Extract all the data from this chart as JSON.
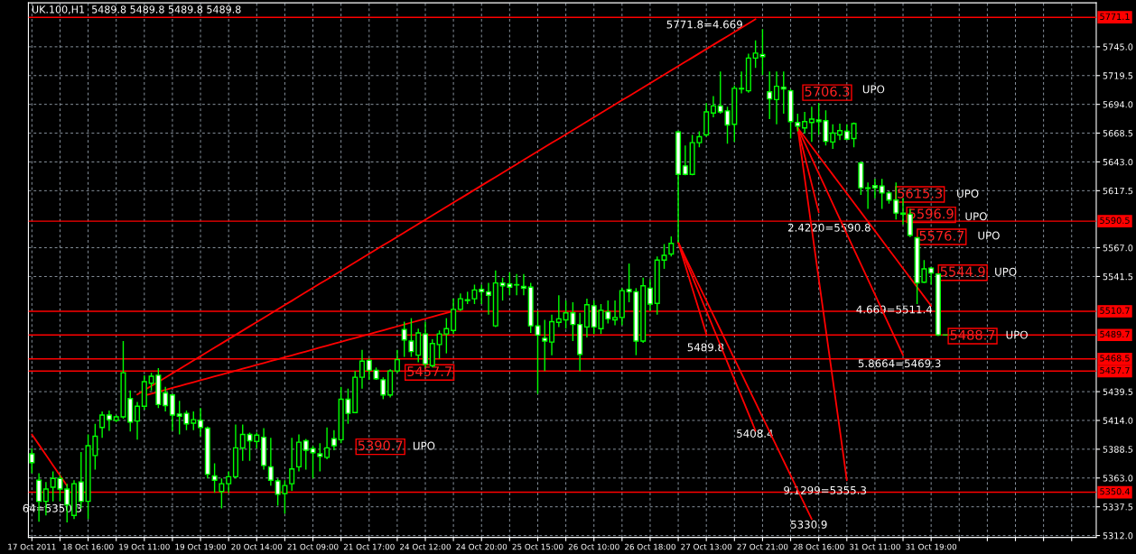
{
  "chart_data": {
    "type": "candlestick",
    "title": "UK.100,H1  5489.8 5489.8 5489.8 5489.8",
    "categories": [
      "17 Oct 2011",
      null,
      null,
      null,
      null,
      null,
      null,
      null,
      "18 Oct 16:00",
      null,
      null,
      null,
      null,
      null,
      null,
      null,
      "19 Oct 11:00",
      null,
      null,
      null,
      null,
      null,
      null,
      null,
      "19 Oct 19:00",
      null,
      null,
      null,
      null,
      null,
      null,
      null,
      "20 Oct 14:00",
      null,
      null,
      null,
      null,
      null,
      null,
      null,
      "21 Oct 09:00",
      null,
      null,
      null,
      null,
      null,
      null,
      null,
      "21 Oct 17:00",
      null,
      null,
      null,
      null,
      null,
      null,
      null,
      "24 Oct 12:00",
      null,
      null,
      null,
      null,
      null,
      null,
      null,
      "24 Oct 20:00",
      null,
      null,
      null,
      null,
      null,
      null,
      null,
      "25 Oct 15:00",
      null,
      null,
      null,
      null,
      null,
      null,
      null,
      "26 Oct 10:00",
      null,
      null,
      null,
      null,
      null,
      null,
      null,
      "26 Oct 18:00",
      null,
      null,
      null,
      null,
      null,
      null,
      null,
      "27 Oct 13:00",
      null,
      null,
      null,
      null,
      null,
      null,
      null,
      "27 Oct 21:00",
      null,
      null,
      null,
      null,
      null,
      null,
      null,
      "28 Oct 16:00",
      null,
      null,
      null,
      null,
      null,
      null,
      null,
      "31 Oct 11:00",
      null,
      null,
      null,
      null,
      null,
      null,
      null,
      "31 Oct 19:00",
      null,
      null
    ],
    "ohlc": [
      [
        5384.4,
        5389.1,
        5367.3,
        5376.6
      ],
      [
        5361.0,
        5367.3,
        5324.2,
        5342.3
      ],
      [
        5342.3,
        5359.5,
        5329.8,
        5353.2
      ],
      [
        5354.8,
        5368.8,
        5342.3,
        5362.6
      ],
      [
        5362.6,
        5365.7,
        5342.3,
        5353.2
      ],
      [
        5353.2,
        5357.9,
        5323.6,
        5339.2
      ],
      [
        5329.8,
        5361.0,
        5326.7,
        5357.9
      ],
      [
        5359.5,
        5386.0,
        5336.0,
        5342.3
      ],
      [
        5342.3,
        5401.6,
        5326.7,
        5391.6
      ],
      [
        5382.9,
        5411.0,
        5370.4,
        5400.0
      ],
      [
        5407.8,
        5421.9,
        5398.5,
        5418.8
      ],
      [
        5418.8,
        5422.8,
        5404.7,
        5414.7
      ],
      [
        5414.1,
        5418.8,
        5412.5,
        5417.2
      ],
      [
        5417.2,
        5484.3,
        5415.6,
        5456.2
      ],
      [
        5433.4,
        5440.6,
        5404.1,
        5412.5
      ],
      [
        5413.5,
        5430.3,
        5396.9,
        5426.6
      ],
      [
        5426.6,
        5454.0,
        5423.5,
        5448.4
      ],
      [
        5446.9,
        5456.2,
        5440.6,
        5453.1
      ],
      [
        5454.0,
        5460.3,
        5425.0,
        5428.1
      ],
      [
        5438.4,
        5443.7,
        5421.9,
        5427.2
      ],
      [
        5436.6,
        5437.5,
        5404.7,
        5418.8
      ],
      [
        5419.7,
        5431.3,
        5401.6,
        5417.8
      ],
      [
        5420.3,
        5422.8,
        5405.3,
        5411.0
      ],
      [
        5411.6,
        5421.9,
        5405.3,
        5414.7
      ],
      [
        5414.1,
        5425.0,
        5400.0,
        5407.8
      ],
      [
        5407.2,
        5408.5,
        5362.6,
        5366.3
      ],
      [
        5364.8,
        5376.0,
        5350.1,
        5361.0
      ],
      [
        5351.0,
        5362.6,
        5336.0,
        5357.9
      ],
      [
        5357.9,
        5368.8,
        5350.1,
        5364.1
      ],
      [
        5364.1,
        5410.3,
        5362.6,
        5389.7
      ],
      [
        5389.7,
        5410.3,
        5378.2,
        5401.6
      ],
      [
        5401.6,
        5403.2,
        5378.2,
        5396.0
      ],
      [
        5395.4,
        5403.2,
        5389.1,
        5401.0
      ],
      [
        5399.1,
        5407.2,
        5370.4,
        5374.1
      ],
      [
        5372.9,
        5398.5,
        5356.3,
        5361.0
      ],
      [
        5360.4,
        5362.6,
        5338.5,
        5348.5
      ],
      [
        5349.2,
        5361.0,
        5331.4,
        5356.3
      ],
      [
        5357.9,
        5398.5,
        5351.6,
        5371.0
      ],
      [
        5372.9,
        5401.6,
        5368.8,
        5394.7
      ],
      [
        5396.0,
        5397.5,
        5370.4,
        5387.6
      ],
      [
        5389.1,
        5391.6,
        5362.6,
        5385.4
      ],
      [
        5384.4,
        5393.8,
        5368.8,
        5382.2
      ],
      [
        5381.3,
        5407.8,
        5379.7,
        5389.7
      ],
      [
        5397.9,
        5405.3,
        5387.6,
        5391.6
      ],
      [
        5396.9,
        5443.7,
        5393.8,
        5432.8
      ],
      [
        5432.8,
        5442.2,
        5411.0,
        5420.3
      ],
      [
        5421.0,
        5457.8,
        5420.3,
        5452.2
      ],
      [
        5452.2,
        5476.5,
        5442.2,
        5466.5
      ],
      [
        5467.2,
        5468.7,
        5450.0,
        5458.4
      ],
      [
        5458.4,
        5460.9,
        5450.0,
        5450.9
      ],
      [
        5450.0,
        5452.2,
        5432.8,
        5436.6
      ],
      [
        5436.6,
        5459.4,
        5434.4,
        5457.8
      ],
      [
        5457.8,
        5476.5,
        5456.2,
        5467.8
      ],
      [
        5494.6,
        5501.5,
        5470.3,
        5485.3
      ],
      [
        5484.3,
        5504.6,
        5470.3,
        5475.0
      ],
      [
        5471.8,
        5495.3,
        5465.6,
        5491.5
      ],
      [
        5490.6,
        5501.5,
        5460.9,
        5464.0
      ],
      [
        5462.5,
        5485.9,
        5460.9,
        5482.1
      ],
      [
        5481.2,
        5493.7,
        5468.7,
        5490.6
      ],
      [
        5490.6,
        5504.6,
        5473.4,
        5495.3
      ],
      [
        5493.7,
        5521.8,
        5490.6,
        5512.4
      ],
      [
        5512.4,
        5526.5,
        5510.9,
        5521.8
      ],
      [
        5520.2,
        5528.0,
        5517.1,
        5520.9
      ],
      [
        5521.8,
        5534.3,
        5517.1,
        5529.6
      ],
      [
        5530.2,
        5534.3,
        5517.1,
        5528.0
      ],
      [
        5528.0,
        5535.8,
        5507.7,
        5524.9
      ],
      [
        5497.8,
        5546.8,
        5496.8,
        5535.8
      ],
      [
        5535.8,
        5540.5,
        5520.2,
        5533.3
      ],
      [
        5534.9,
        5545.2,
        5524.9,
        5532.1
      ],
      [
        5534.0,
        5543.7,
        5524.9,
        5534.3
      ],
      [
        5532.7,
        5543.7,
        5524.9,
        5531.2
      ],
      [
        5532.1,
        5535.8,
        5491.5,
        5497.8
      ],
      [
        5497.8,
        5510.9,
        5437.5,
        5489.6
      ],
      [
        5486.8,
        5503.1,
        5457.8,
        5484.3
      ],
      [
        5483.4,
        5507.7,
        5471.8,
        5501.5
      ],
      [
        5500.9,
        5524.9,
        5496.8,
        5504.0
      ],
      [
        5503.1,
        5520.2,
        5495.3,
        5509.3
      ],
      [
        5509.3,
        5518.7,
        5484.3,
        5499.0
      ],
      [
        5499.0,
        5509.3,
        5457.8,
        5472.5
      ],
      [
        5496.8,
        5521.8,
        5487.5,
        5516.5
      ],
      [
        5515.6,
        5520.2,
        5490.6,
        5496.8
      ],
      [
        5495.3,
        5517.1,
        5490.6,
        5511.5
      ],
      [
        5510.2,
        5520.2,
        5499.9,
        5504.0
      ],
      [
        5503.1,
        5520.2,
        5498.4,
        5505.2
      ],
      [
        5505.2,
        5531.2,
        5498.4,
        5529.0
      ],
      [
        5530.2,
        5553.0,
        5518.7,
        5528.0
      ],
      [
        5528.0,
        5531.2,
        5471.8,
        5484.3
      ],
      [
        5484.3,
        5540.5,
        5482.8,
        5533.3
      ],
      [
        5531.2,
        5539.0,
        5510.9,
        5517.1
      ],
      [
        5517.7,
        5559.3,
        5507.7,
        5556.1
      ],
      [
        5556.1,
        5570.2,
        5548.3,
        5560.2
      ],
      [
        5561.4,
        5577.1,
        5559.3,
        5570.8
      ],
      [
        5669.5,
        5670.1,
        5571.7,
        5632.0
      ],
      [
        5639.5,
        5657.6,
        5631.1,
        5632.0
      ],
      [
        5632.0,
        5667.0,
        5631.1,
        5660.1
      ],
      [
        5660.1,
        5670.1,
        5656.0,
        5665.4
      ],
      [
        5667.0,
        5695.1,
        5665.4,
        5687.3
      ],
      [
        5686.3,
        5701.3,
        5682.6,
        5692.6
      ],
      [
        5692.6,
        5723.2,
        5685.7,
        5687.3
      ],
      [
        5688.2,
        5691.9,
        5659.2,
        5675.7
      ],
      [
        5676.3,
        5710.7,
        5660.7,
        5708.2
      ],
      [
        5707.6,
        5723.2,
        5703.8,
        5708.2
      ],
      [
        5706.0,
        5738.8,
        5704.4,
        5735.0
      ],
      [
        5735.0,
        5750.6,
        5726.3,
        5739.4
      ],
      [
        5738.2,
        5760.6,
        5720.0,
        5736.3
      ],
      [
        5705.1,
        5723.2,
        5681.0,
        5698.8
      ],
      [
        5698.2,
        5723.2,
        5676.3,
        5710.0
      ],
      [
        5709.1,
        5723.2,
        5685.7,
        5707.6
      ],
      [
        5706.0,
        5707.6,
        5663.8,
        5678.8
      ],
      [
        5677.9,
        5685.7,
        5670.1,
        5674.8
      ],
      [
        5673.2,
        5687.3,
        5668.5,
        5678.8
      ],
      [
        5677.9,
        5691.9,
        5660.7,
        5681.0
      ],
      [
        5680.1,
        5695.1,
        5667.0,
        5678.8
      ],
      [
        5679.5,
        5688.8,
        5657.6,
        5661.3
      ],
      [
        5660.7,
        5676.3,
        5654.5,
        5668.5
      ],
      [
        5667.0,
        5677.0,
        5662.3,
        5670.7
      ],
      [
        5670.1,
        5676.3,
        5662.3,
        5663.2
      ],
      [
        5663.8,
        5677.9,
        5656.0,
        5677.0
      ],
      [
        5642.0,
        5643.6,
        5613.9,
        5620.1
      ],
      [
        5620.1,
        5624.8,
        5601.4,
        5619.5
      ],
      [
        5622.0,
        5627.9,
        5610.8,
        5620.1
      ],
      [
        5621.7,
        5627.9,
        5601.4,
        5615.5
      ],
      [
        5615.5,
        5617.0,
        5606.1,
        5609.2
      ],
      [
        5609.2,
        5624.8,
        5592.0,
        5597.7
      ],
      [
        5597.7,
        5610.8,
        5587.4,
        5596.7
      ],
      [
        5596.7,
        5601.4,
        5576.4,
        5578.0
      ],
      [
        5575.8,
        5576.4,
        5517.1,
        5535.8
      ],
      [
        5536.5,
        5556.1,
        5535.8,
        5548.3
      ],
      [
        5549.0,
        5549.9,
        5534.3,
        5544.6
      ],
      [
        5543.7,
        5543.7,
        5488.7,
        5489.8
      ],
      [
        5489.8,
        5489.8,
        5489.8,
        5489.8
      ]
    ],
    "color": "#00ff00",
    "colors": [
      "#ffffff",
      "#ffffff",
      "#000000",
      "#000000",
      "#ffffff",
      "#ffffff",
      "#000000",
      "#ffffff",
      "#000000",
      "#000000",
      "#000000",
      "#ffffff",
      "#000000",
      "#000000",
      "#ffffff",
      "#000000",
      "#000000",
      "#000000",
      "#ffffff",
      "#ffffff",
      "#ffffff",
      "#ffffff",
      "#ffffff",
      "#000000",
      "#ffffff",
      "#ffffff",
      "#ffffff",
      "#000000",
      "#000000",
      "#000000",
      "#000000",
      "#ffffff",
      "#000000",
      "#ffffff",
      "#ffffff",
      "#ffffff",
      "#000000",
      "#000000",
      "#000000",
      "#ffffff",
      "#ffffff",
      "#ffffff",
      "#000000",
      "#ffffff",
      "#000000",
      "#ffffff",
      "#000000",
      "#000000",
      "#ffffff",
      "#ffffff",
      "#ffffff",
      "#000000",
      "#000000",
      "#ffffff",
      "#ffffff",
      "#000000",
      "#ffffff",
      "#000000",
      "#000000",
      "#000000",
      "#000000",
      "#000000",
      "#000000",
      "#000000",
      "#ffffff",
      "#ffffff",
      "#000000",
      "#ffffff",
      "#ffffff",
      "#000000",
      "#ffffff",
      "#ffffff",
      "#ffffff",
      "#ffffff",
      "#000000",
      "#000000",
      "#000000",
      "#ffffff",
      "#ffffff",
      "#000000",
      "#ffffff",
      "#000000",
      "#ffffff",
      "#000000",
      "#000000",
      "#ffffff",
      "#ffffff",
      "#000000",
      "#ffffff",
      "#000000",
      "#000000",
      "#000000",
      "#ffffff",
      "#ffffff",
      "#000000",
      "#000000",
      "#000000",
      "#000000",
      "#ffffff",
      "#ffffff",
      "#000000",
      "#000000",
      "#000000",
      "#000000",
      "#ffffff",
      "#ffffff",
      "#000000",
      "#ffffff",
      "#ffffff",
      "#ffffff",
      "#000000",
      "#000000",
      "#ffffff",
      "#ffffff",
      "#000000",
      "#000000",
      "#ffffff",
      "#000000",
      "#ffffff",
      "#ffffff",
      "#ffffff",
      "#ffffff",
      "#ffffff",
      "#ffffff",
      "#ffffff",
      "#ffffff",
      "#ffffff",
      "#000000",
      "#ffffff",
      "#ffffff",
      "#ffffff"
    ],
    "series": [
      {
        "type": "line",
        "color": "#ff0000",
        "values": [
          null,
          null,
          null,
          null,
          null,
          null,
          null,
          null,
          null,
          null,
          null,
          null,
          null,
          null,
          null,
          5436.9,
          5440.7,
          5444.5,
          5448.2,
          5452.0,
          5455.8,
          5459.6,
          5463.4,
          5467.1,
          5470.9,
          5474.7,
          5478.5,
          5482.2,
          5486.0,
          5489.8,
          5493.6,
          5497.4,
          5501.1,
          5504.9,
          5508.7,
          5512.5,
          5516.3,
          5520.0,
          5523.8,
          5527.6,
          5531.4,
          5535.2,
          5538.9,
          5542.7,
          5546.5,
          5550.3,
          5554.0,
          5557.8,
          5561.6,
          5565.4,
          5569.2,
          5572.9,
          5576.7,
          5580.5,
          5584.3,
          5588.1,
          5591.8,
          5595.6,
          5599.4,
          5603.2,
          5607.0,
          5610.7,
          5614.5,
          5618.3,
          5622.1,
          5625.9,
          5629.6,
          5633.4,
          5637.2,
          5641.0,
          5644.7,
          5648.5,
          5652.3,
          5656.1,
          5659.9,
          5663.6,
          5667.4,
          5671.2,
          5675.0,
          5678.8,
          5682.5,
          5686.3,
          5690.1,
          5693.9,
          5697.7,
          5701.4,
          5705.2,
          5709.0,
          5712.8,
          5716.5,
          5720.3,
          5724.1,
          5727.9,
          5731.7,
          5735.4,
          5739.2,
          5743.0,
          5746.8,
          5750.6,
          5754.3,
          5758.1,
          5761.9,
          5765.7,
          5769.5,
          null,
          null,
          null,
          null,
          null,
          null,
          null,
          null,
          null,
          null,
          null,
          null,
          null,
          null,
          null,
          null,
          null,
          null,
          null,
          null,
          null,
          null,
          null,
          null,
          null,
          null,
          null
        ]
      },
      {
        "type": "line",
        "color": "#ff0000",
        "values": [
          null,
          null,
          null,
          null,
          null,
          null,
          null,
          null,
          null,
          null,
          null,
          null,
          null,
          null,
          null,
          null,
          5436.0,
          5437.7,
          5439.4,
          5441.1,
          5442.8,
          5444.5,
          5446.2,
          5447.9,
          5449.6,
          5451.3,
          5453.0,
          5454.7,
          5456.4,
          5458.1,
          5459.8,
          5461.5,
          5463.2,
          5464.9,
          5466.6,
          5468.3,
          5470.0,
          5471.7,
          5473.4,
          5475.1,
          5476.8,
          5478.6,
          5480.3,
          5482.0,
          5483.7,
          5485.4,
          5487.1,
          5488.8,
          5490.5,
          5492.2,
          5493.9,
          5495.6,
          5497.3,
          5499.0,
          5500.7,
          5502.4,
          5504.1,
          5505.8,
          5507.5,
          5509.2,
          5510.9,
          null,
          null,
          null,
          null,
          null,
          null,
          null,
          null,
          null,
          null,
          null,
          null,
          null,
          null,
          null,
          null,
          null,
          null,
          null,
          null,
          null,
          null,
          null,
          null,
          null,
          null,
          null,
          null,
          null,
          null,
          null,
          null,
          null,
          null,
          null,
          null,
          null,
          null,
          null,
          null,
          null,
          null,
          null,
          null,
          null,
          null,
          null,
          null,
          null,
          null,
          null,
          null,
          null,
          null,
          null,
          null,
          null,
          null,
          null,
          null,
          null,
          null,
          null,
          null,
          null,
          null,
          null,
          null,
          null,
          null
        ]
      },
      {
        "type": "line",
        "color": "#ff0000",
        "values": [
          5401.6,
          5392.5,
          5383.4,
          5374.3,
          5365.2,
          5356.1,
          null,
          null,
          null,
          null,
          null,
          null,
          null,
          null,
          null,
          null,
          null,
          null,
          null,
          null,
          null,
          null,
          null,
          null,
          null,
          null,
          null,
          null,
          null,
          null,
          null,
          null,
          null,
          null,
          null,
          null,
          null,
          null,
          null,
          null,
          null,
          null,
          null,
          null,
          null,
          null,
          null,
          null,
          null,
          null,
          null,
          null,
          null,
          null,
          null,
          null,
          null,
          null,
          null,
          null,
          null,
          null,
          null,
          null,
          null,
          null,
          null,
          null,
          null,
          null,
          null,
          null,
          null,
          null,
          null,
          null,
          null,
          null,
          null,
          null,
          null,
          null,
          null,
          null,
          null,
          null,
          null,
          null,
          null,
          null,
          null,
          null,
          null,
          null,
          null,
          null,
          null,
          null,
          null,
          null,
          null,
          null,
          null,
          null,
          null,
          null,
          null,
          null,
          null,
          null,
          null,
          null,
          null,
          null,
          null,
          null,
          null,
          null,
          null,
          null,
          null,
          null,
          null,
          null,
          null,
          null,
          null,
          null,
          null,
          null,
          null
        ]
      },
      {
        "type": "line",
        "color": "#ff0000",
        "values": [
          null,
          null,
          null,
          null,
          null,
          null,
          null,
          null,
          null,
          null,
          null,
          null,
          null,
          null,
          null,
          null,
          null,
          null,
          null,
          null,
          null,
          null,
          null,
          null,
          null,
          null,
          null,
          null,
          null,
          null,
          null,
          null,
          null,
          null,
          null,
          null,
          null,
          null,
          null,
          null,
          null,
          null,
          null,
          null,
          null,
          null,
          null,
          null,
          null,
          null,
          null,
          null,
          null,
          null,
          null,
          null,
          null,
          null,
          null,
          null,
          null,
          null,
          null,
          null,
          null,
          null,
          null,
          null,
          null,
          null,
          null,
          null,
          null,
          null,
          null,
          null,
          null,
          null,
          null,
          null,
          null,
          null,
          null,
          null,
          null,
          null,
          null,
          null,
          null,
          null,
          null,
          null,
          5571.7,
          5551.4,
          5531.1,
          5510.9,
          5490.6,
          null,
          null,
          null,
          null,
          null,
          null,
          null,
          null,
          null,
          null,
          null,
          null,
          null,
          null,
          null,
          null,
          null,
          null,
          null,
          null,
          null,
          null,
          null,
          null,
          null,
          null,
          null,
          null,
          null,
          null,
          null,
          null,
          null,
          null
        ]
      },
      {
        "type": "line",
        "color": "#ff0000",
        "values": [
          null,
          null,
          null,
          null,
          null,
          null,
          null,
          null,
          null,
          null,
          null,
          null,
          null,
          null,
          null,
          null,
          null,
          null,
          null,
          null,
          null,
          null,
          null,
          null,
          null,
          null,
          null,
          null,
          null,
          null,
          null,
          null,
          null,
          null,
          null,
          null,
          null,
          null,
          null,
          null,
          null,
          null,
          null,
          null,
          null,
          null,
          null,
          null,
          null,
          null,
          null,
          null,
          null,
          null,
          null,
          null,
          null,
          null,
          null,
          null,
          null,
          null,
          null,
          null,
          null,
          null,
          null,
          null,
          null,
          null,
          null,
          null,
          null,
          null,
          null,
          null,
          null,
          null,
          null,
          null,
          null,
          null,
          null,
          null,
          null,
          null,
          null,
          null,
          null,
          null,
          null,
          null,
          5571.7,
          5556.5,
          5541.4,
          5526.2,
          5511.0,
          5495.9,
          5480.7,
          5465.5,
          5450.3,
          5435.2,
          5420.0,
          5404.8,
          null,
          null,
          null,
          null,
          null,
          null,
          null,
          null,
          null,
          null,
          null,
          null,
          null,
          null,
          null,
          null,
          null,
          null,
          null,
          null,
          null,
          null,
          null,
          null,
          null,
          null,
          null
        ]
      },
      {
        "type": "line",
        "color": "#ff0000",
        "values": [
          null,
          null,
          null,
          null,
          null,
          null,
          null,
          null,
          null,
          null,
          null,
          null,
          null,
          null,
          null,
          null,
          null,
          null,
          null,
          null,
          null,
          null,
          null,
          null,
          null,
          null,
          null,
          null,
          null,
          null,
          null,
          null,
          null,
          null,
          null,
          null,
          null,
          null,
          null,
          null,
          null,
          null,
          null,
          null,
          null,
          null,
          null,
          null,
          null,
          null,
          null,
          null,
          null,
          null,
          null,
          null,
          null,
          null,
          null,
          null,
          null,
          null,
          null,
          null,
          null,
          null,
          null,
          null,
          null,
          null,
          null,
          null,
          null,
          null,
          null,
          null,
          null,
          null,
          null,
          null,
          null,
          null,
          null,
          null,
          null,
          null,
          null,
          null,
          null,
          null,
          null,
          null,
          5571.7,
          5558.8,
          5545.9,
          5533.0,
          5520.1,
          5507.2,
          5494.3,
          5481.4,
          5468.5,
          5455.6,
          5442.7,
          5429.8,
          5416.9,
          5404.0,
          5391.1,
          5378.2,
          5365.3,
          5352.4,
          5339.5,
          5326.6,
          null,
          null,
          null,
          null,
          null,
          null,
          null,
          null,
          null,
          null,
          null,
          null,
          null,
          null,
          null,
          null,
          null,
          null,
          null
        ]
      },
      {
        "type": "line",
        "color": "#ff0000",
        "values": [
          null,
          null,
          null,
          null,
          null,
          null,
          null,
          null,
          null,
          null,
          null,
          null,
          null,
          null,
          null,
          null,
          null,
          null,
          null,
          null,
          null,
          null,
          null,
          null,
          null,
          null,
          null,
          null,
          null,
          null,
          null,
          null,
          null,
          null,
          null,
          null,
          null,
          null,
          null,
          null,
          null,
          null,
          null,
          null,
          null,
          null,
          null,
          null,
          null,
          null,
          null,
          null,
          null,
          null,
          null,
          null,
          null,
          null,
          null,
          null,
          null,
          null,
          null,
          null,
          null,
          null,
          null,
          null,
          null,
          null,
          null,
          null,
          null,
          null,
          null,
          null,
          null,
          null,
          null,
          null,
          null,
          null,
          null,
          null,
          null,
          null,
          null,
          null,
          null,
          null,
          null,
          null,
          null,
          null,
          null,
          null,
          null,
          null,
          null,
          null,
          null,
          null,
          null,
          null,
          null,
          null,
          null,
          null,
          null,
          5673.2,
          5648.2,
          5623.3,
          5598.3,
          null,
          null,
          null,
          null,
          null,
          null,
          null,
          null,
          null,
          null,
          null,
          null,
          null,
          null,
          null,
          null,
          null,
          null
        ]
      },
      {
        "type": "line",
        "color": "#ff0000",
        "values": [
          null,
          null,
          null,
          null,
          null,
          null,
          null,
          null,
          null,
          null,
          null,
          null,
          null,
          null,
          null,
          null,
          null,
          null,
          null,
          null,
          null,
          null,
          null,
          null,
          null,
          null,
          null,
          null,
          null,
          null,
          null,
          null,
          null,
          null,
          null,
          null,
          null,
          null,
          null,
          null,
          null,
          null,
          null,
          null,
          null,
          null,
          null,
          null,
          null,
          null,
          null,
          null,
          null,
          null,
          null,
          null,
          null,
          null,
          null,
          null,
          null,
          null,
          null,
          null,
          null,
          null,
          null,
          null,
          null,
          null,
          null,
          null,
          null,
          null,
          null,
          null,
          null,
          null,
          null,
          null,
          null,
          null,
          null,
          null,
          null,
          null,
          null,
          null,
          null,
          null,
          null,
          null,
          null,
          null,
          null,
          null,
          null,
          null,
          null,
          null,
          null,
          null,
          null,
          null,
          null,
          null,
          null,
          null,
          null,
          5673.2,
          5628.6,
          5584.0,
          5539.4,
          5494.8,
          5450.2,
          5405.6,
          5361.0,
          null,
          null,
          null,
          null,
          null,
          null,
          null,
          null,
          null,
          null,
          null,
          null,
          null,
          null
        ]
      },
      {
        "type": "line",
        "color": "#ff0000",
        "values": [
          null,
          null,
          null,
          null,
          null,
          null,
          null,
          null,
          null,
          null,
          null,
          null,
          null,
          null,
          null,
          null,
          null,
          null,
          null,
          null,
          null,
          null,
          null,
          null,
          null,
          null,
          null,
          null,
          null,
          null,
          null,
          null,
          null,
          null,
          null,
          null,
          null,
          null,
          null,
          null,
          null,
          null,
          null,
          null,
          null,
          null,
          null,
          null,
          null,
          null,
          null,
          null,
          null,
          null,
          null,
          null,
          null,
          null,
          null,
          null,
          null,
          null,
          null,
          null,
          null,
          null,
          null,
          null,
          null,
          null,
          null,
          null,
          null,
          null,
          null,
          null,
          null,
          null,
          null,
          null,
          null,
          null,
          null,
          null,
          null,
          null,
          null,
          null,
          null,
          null,
          null,
          null,
          null,
          null,
          null,
          null,
          null,
          null,
          null,
          null,
          null,
          null,
          null,
          null,
          null,
          null,
          null,
          null,
          null,
          5673.2,
          5659.8,
          5646.3,
          5632.9,
          5619.5,
          5606.0,
          5592.6,
          5579.2,
          5565.8,
          5552.3,
          5538.9,
          5525.5,
          5512.0,
          5498.6,
          5485.2,
          5471.8,
          null,
          null,
          null,
          null,
          null,
          null
        ]
      },
      {
        "type": "line",
        "color": "#ff0000",
        "values": [
          null,
          null,
          null,
          null,
          null,
          null,
          null,
          null,
          null,
          null,
          null,
          null,
          null,
          null,
          null,
          null,
          null,
          null,
          null,
          null,
          null,
          null,
          null,
          null,
          null,
          null,
          null,
          null,
          null,
          null,
          null,
          null,
          null,
          null,
          null,
          null,
          null,
          null,
          null,
          null,
          null,
          null,
          null,
          null,
          null,
          null,
          null,
          null,
          null,
          null,
          null,
          null,
          null,
          null,
          null,
          null,
          null,
          null,
          null,
          null,
          null,
          null,
          null,
          null,
          null,
          null,
          null,
          null,
          null,
          null,
          null,
          null,
          null,
          null,
          null,
          null,
          null,
          null,
          null,
          null,
          null,
          null,
          null,
          null,
          null,
          null,
          null,
          null,
          null,
          null,
          null,
          null,
          null,
          null,
          null,
          null,
          null,
          null,
          null,
          null,
          null,
          null,
          null,
          null,
          null,
          null,
          null,
          null,
          null,
          5673.2,
          5664.9,
          5656.6,
          5648.3,
          5640.0,
          5631.7,
          5623.4,
          5615.1,
          5606.8,
          5598.5,
          5590.2,
          5581.9,
          5573.6,
          5565.3,
          5557.0,
          5548.7,
          5540.4,
          5532.1,
          5523.8,
          5515.5,
          null,
          null
        ]
      }
    ],
    "ylim": [
      5310.4,
      5784.0
    ],
    "yticks": [
      {
        "value": 5312.0,
        "label": "5312.0"
      },
      5337.5,
      {
        "value": 5363.0,
        "label": "5363.0"
      },
      5388.5,
      {
        "value": 5414.0,
        "label": "5414.0"
      },
      5439.5,
      5541.5,
      {
        "value": 5567.0,
        "label": "5567.0"
      },
      5617.5,
      {
        "value": 5643.0,
        "label": "5643.0"
      },
      5668.5,
      {
        "value": 5694.0,
        "label": "5694.0"
      },
      5719.5,
      {
        "value": 5745.0,
        "label": "5745.0"
      }
    ],
    "grid": true,
    "ref_lines": [
      {
        "axis": "y",
        "value": 5771.1,
        "label": "5771.1",
        "color": "#ff0000"
      },
      {
        "axis": "y",
        "value": 5590.5,
        "label": "5590.5",
        "color": "#ff0000"
      },
      {
        "axis": "y",
        "value": 5510.7,
        "label": "5510.7",
        "color": "#ff0000"
      },
      {
        "axis": "y",
        "value": 5489.7,
        "label": "5489.7",
        "color": "#ff0000"
      },
      {
        "axis": "y",
        "value": 5468.5,
        "label": "5468.5",
        "color": "#ff0000"
      },
      {
        "axis": "y",
        "value": 5457.7,
        "label": "5457.7",
        "color": "#ff0000"
      },
      {
        "axis": "y",
        "value": 5350.4,
        "label": "5350.4",
        "color": "#ff0000"
      }
    ],
    "annotations": [
      "5771.8=4.669",
      "5706.3",
      "UPO",
      "5615.3",
      "UPO",
      "5596.9",
      "UPO",
      "5576.7",
      "UPO",
      "5544.9",
      "UPO",
      "5488.7",
      "UPO",
      "5457.7",
      "5390.7",
      "UPO",
      "2.4220=5590.8",
      "4.669=5511.4",
      "5.8664=5469.3",
      "5489.8",
      "5408.4",
      "9.1299=5355.3",
      "5330.9",
      "64=5350.3"
    ]
  }
}
